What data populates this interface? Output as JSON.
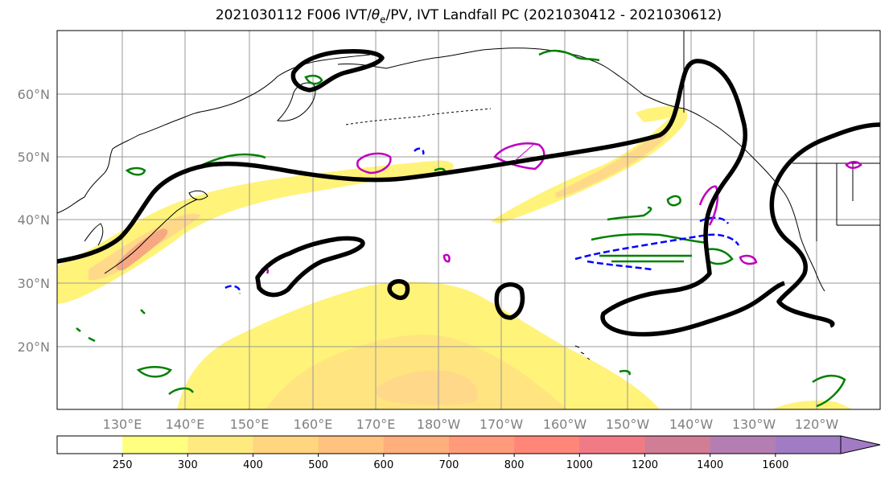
{
  "title": {
    "prefix": "2021030112 F006 IVT/",
    "theta": "θ",
    "theta_sub": "e",
    "suffix": "/PV, IVT Landfall PC (2021030412 - 2021030612)"
  },
  "lat_labels": [
    "60°N",
    "50°N",
    "40°N",
    "30°N",
    "20°N"
  ],
  "lon_labels": [
    "130°E",
    "140°E",
    "150°E",
    "160°E",
    "170°E",
    "180°W",
    "170°W",
    "160°W",
    "150°W",
    "140°W",
    "130°W",
    "120°W"
  ],
  "colorbar": {
    "ticks": [
      "250",
      "300",
      "400",
      "500",
      "600",
      "700",
      "800",
      "1000",
      "1200",
      "1400",
      "1600"
    ],
    "colors": [
      "#ffffff",
      "#ffff80",
      "#ffea80",
      "#ffd580",
      "#ffc27f",
      "#ffae7d",
      "#ff9b7b",
      "#ff8679",
      "#f07b85",
      "#d17d96",
      "#b57eb2",
      "#a17cc4"
    ]
  },
  "colors": {
    "pc_contour": "#000000",
    "theta_contour": "#008000",
    "pv_dashed": "#0000ff",
    "pv_magenta": "#bf00bf",
    "grid": "#999999",
    "coast": "#000000"
  }
}
